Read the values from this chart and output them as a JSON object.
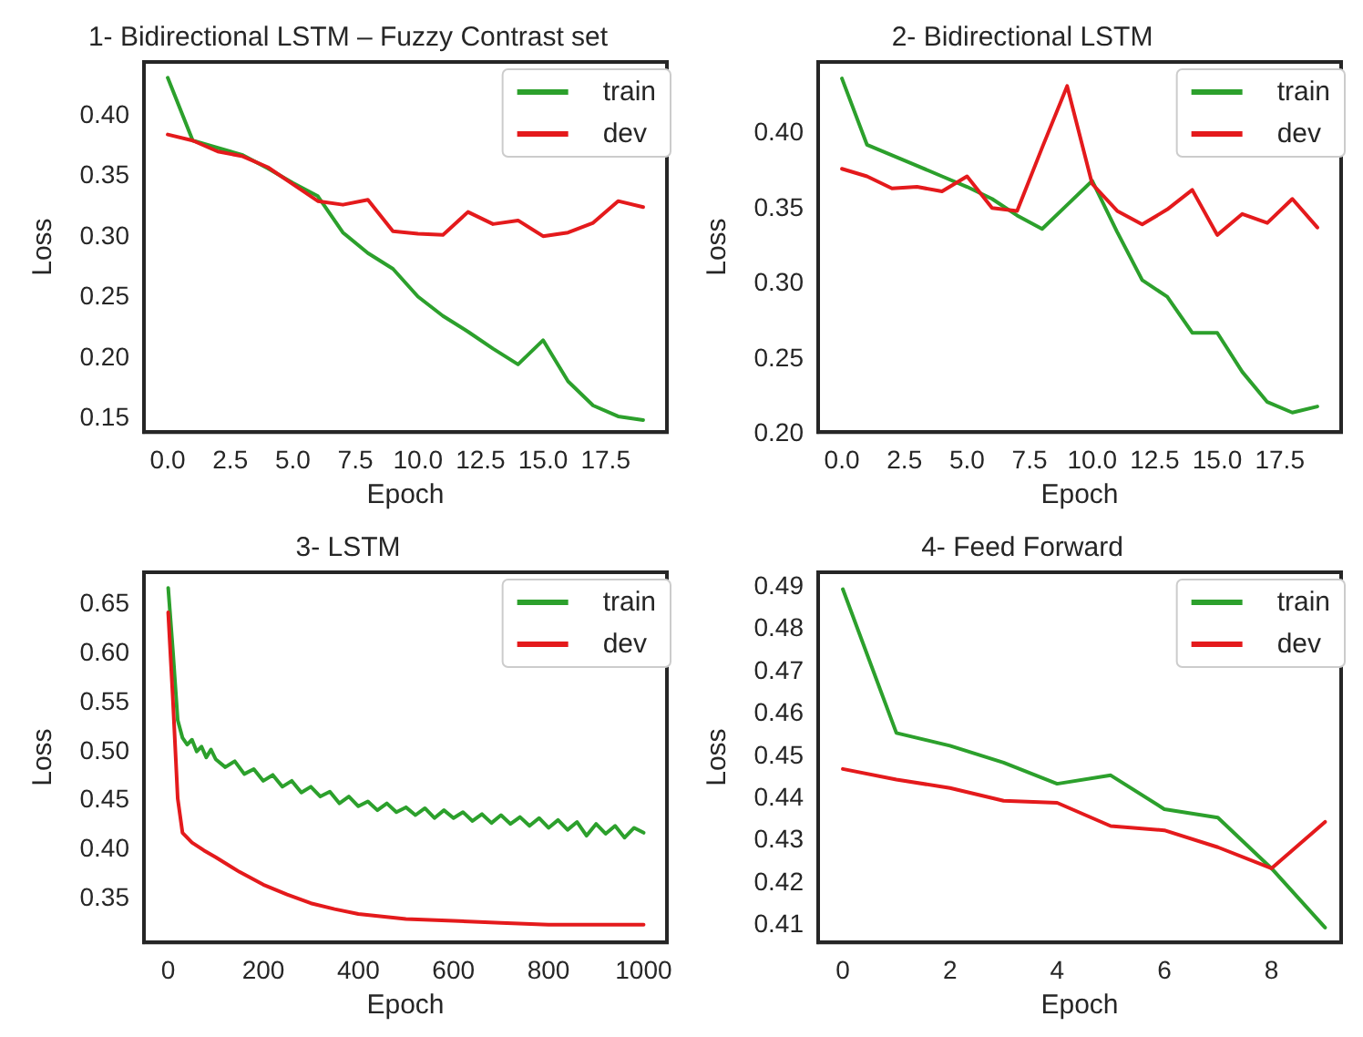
{
  "chart_data": [
    {
      "type": "line",
      "title": "1- Bidirectional LSTM – Fuzzy Contrast set",
      "xlabel": "Epoch",
      "ylabel": "Loss",
      "legend": "top right",
      "grid": false,
      "line_style": "solid",
      "x": [
        0,
        1,
        2,
        3,
        4,
        5,
        6,
        7,
        8,
        9,
        10,
        11,
        12,
        13,
        14,
        15,
        16,
        17,
        18,
        19
      ],
      "xlim": [
        -0.95,
        19.95
      ],
      "xticks": [
        {
          "value": 0,
          "label": "0.0"
        },
        {
          "value": 2.5,
          "label": "2.5"
        },
        {
          "value": 5,
          "label": "5.0"
        },
        {
          "value": 7.5,
          "label": "7.5"
        },
        {
          "value": 10,
          "label": "10.0"
        },
        {
          "value": 12.5,
          "label": "12.5"
        },
        {
          "value": 15,
          "label": "15.0"
        },
        {
          "value": 17.5,
          "label": "17.5"
        }
      ],
      "ylim": [
        0.137,
        0.443
      ],
      "yticks": [
        {
          "value": 0.15,
          "label": "0.15"
        },
        {
          "value": 0.2,
          "label": "0.20"
        },
        {
          "value": 0.25,
          "label": "0.25"
        },
        {
          "value": 0.3,
          "label": "0.30"
        },
        {
          "value": 0.35,
          "label": "0.35"
        },
        {
          "value": 0.4,
          "label": "0.40"
        }
      ],
      "series": [
        {
          "name": "train",
          "color": "#2ca02c",
          "values": [
            0.43,
            0.378,
            0.372,
            0.366,
            0.355,
            0.343,
            0.332,
            0.302,
            0.285,
            0.272,
            0.249,
            0.233,
            0.22,
            0.206,
            0.193,
            0.213,
            0.179,
            0.159,
            0.15,
            0.147
          ]
        },
        {
          "name": "dev",
          "color": "#e41a1c",
          "values": [
            0.383,
            0.378,
            0.369,
            0.365,
            0.356,
            0.342,
            0.328,
            0.325,
            0.329,
            0.303,
            0.301,
            0.3,
            0.319,
            0.309,
            0.312,
            0.299,
            0.302,
            0.31,
            0.328,
            0.323
          ]
        }
      ]
    },
    {
      "type": "line",
      "title": "2- Bidirectional LSTM",
      "xlabel": "Epoch",
      "ylabel": "Loss",
      "legend": "top right",
      "grid": false,
      "line_style": "solid",
      "x": [
        0,
        1,
        2,
        3,
        4,
        5,
        6,
        7,
        8,
        9,
        10,
        11,
        12,
        13,
        14,
        15,
        16,
        17,
        18,
        19
      ],
      "xlim": [
        -0.95,
        19.95
      ],
      "xticks": [
        {
          "value": 0,
          "label": "0.0"
        },
        {
          "value": 2.5,
          "label": "2.5"
        },
        {
          "value": 5,
          "label": "5.0"
        },
        {
          "value": 7.5,
          "label": "7.5"
        },
        {
          "value": 10,
          "label": "10.0"
        },
        {
          "value": 12.5,
          "label": "12.5"
        },
        {
          "value": 15,
          "label": "15.0"
        },
        {
          "value": 17.5,
          "label": "17.5"
        }
      ],
      "ylim": [
        0.2,
        0.446
      ],
      "yticks": [
        {
          "value": 0.2,
          "label": "0.20"
        },
        {
          "value": 0.25,
          "label": "0.25"
        },
        {
          "value": 0.3,
          "label": "0.30"
        },
        {
          "value": 0.35,
          "label": "0.35"
        },
        {
          "value": 0.4,
          "label": "0.40"
        }
      ],
      "series": [
        {
          "name": "train",
          "color": "#2ca02c",
          "values": [
            0.435,
            0.391,
            0.384,
            0.377,
            0.37,
            0.363,
            0.355,
            0.344,
            0.335,
            0.351,
            0.367,
            0.333,
            0.301,
            0.29,
            0.266,
            0.266,
            0.24,
            0.22,
            0.213,
            0.217
          ]
        },
        {
          "name": "dev",
          "color": "#e41a1c",
          "values": [
            0.375,
            0.37,
            0.362,
            0.363,
            0.36,
            0.37,
            0.349,
            0.347,
            0.389,
            0.43,
            0.365,
            0.347,
            0.338,
            0.348,
            0.361,
            0.331,
            0.345,
            0.339,
            0.355,
            0.336
          ]
        }
      ]
    },
    {
      "type": "line",
      "title": "3- LSTM",
      "xlabel": "Epoch",
      "ylabel": "Loss",
      "legend": "top right",
      "grid": false,
      "line_style": "solid",
      "xlim": [
        -51,
        1049
      ],
      "xticks": [
        0,
        200,
        400,
        600,
        800,
        1000
      ],
      "ylim": [
        0.303,
        0.681
      ],
      "yticks": [
        {
          "value": 0.35,
          "label": "0.35"
        },
        {
          "value": 0.4,
          "label": "0.40"
        },
        {
          "value": 0.45,
          "label": "0.45"
        },
        {
          "value": 0.5,
          "label": "0.50"
        },
        {
          "value": 0.55,
          "label": "0.55"
        },
        {
          "value": 0.6,
          "label": "0.60"
        },
        {
          "value": 0.65,
          "label": "0.65"
        }
      ],
      "series": [
        {
          "name": "train",
          "color": "#2ca02c",
          "x": [
            0,
            10,
            20,
            30,
            40,
            50,
            60,
            70,
            80,
            90,
            100,
            120,
            140,
            160,
            180,
            200,
            220,
            240,
            260,
            280,
            300,
            320,
            340,
            360,
            380,
            400,
            420,
            440,
            460,
            480,
            500,
            520,
            540,
            560,
            580,
            600,
            620,
            640,
            660,
            680,
            700,
            720,
            740,
            760,
            780,
            800,
            820,
            840,
            860,
            880,
            900,
            920,
            940,
            960,
            980,
            1000
          ],
          "values": [
            0.665,
            0.6,
            0.53,
            0.512,
            0.505,
            0.51,
            0.498,
            0.503,
            0.492,
            0.5,
            0.49,
            0.482,
            0.488,
            0.475,
            0.48,
            0.468,
            0.474,
            0.462,
            0.468,
            0.456,
            0.462,
            0.452,
            0.457,
            0.445,
            0.452,
            0.442,
            0.447,
            0.438,
            0.445,
            0.436,
            0.441,
            0.433,
            0.44,
            0.43,
            0.438,
            0.43,
            0.436,
            0.427,
            0.434,
            0.425,
            0.433,
            0.424,
            0.431,
            0.422,
            0.43,
            0.42,
            0.428,
            0.418,
            0.426,
            0.412,
            0.424,
            0.414,
            0.422,
            0.41,
            0.42,
            0.415
          ]
        },
        {
          "name": "dev",
          "color": "#e41a1c",
          "x": [
            0,
            10,
            20,
            30,
            50,
            75,
            100,
            150,
            200,
            250,
            300,
            350,
            400,
            500,
            600,
            700,
            800,
            900,
            1000
          ],
          "values": [
            0.64,
            0.55,
            0.45,
            0.415,
            0.405,
            0.397,
            0.39,
            0.375,
            0.362,
            0.352,
            0.343,
            0.337,
            0.332,
            0.327,
            0.325,
            0.323,
            0.321,
            0.321,
            0.321
          ]
        }
      ]
    },
    {
      "type": "line",
      "title": "4- Feed Forward",
      "xlabel": "Epoch",
      "ylabel": "Loss",
      "legend": "top right",
      "grid": false,
      "line_style": "solid",
      "x": [
        0,
        1,
        2,
        3,
        4,
        5,
        6,
        7,
        8,
        9
      ],
      "xlim": [
        -0.46,
        9.3
      ],
      "xticks": [
        0,
        2,
        4,
        6,
        8
      ],
      "ylim": [
        0.4055,
        0.493
      ],
      "yticks": [
        0.41,
        0.42,
        0.43,
        0.44,
        0.45,
        0.46,
        0.47,
        0.48,
        0.49
      ],
      "series": [
        {
          "name": "train",
          "color": "#2ca02c",
          "values": [
            0.489,
            0.455,
            0.452,
            0.448,
            0.443,
            0.445,
            0.437,
            0.435,
            0.423,
            0.409
          ]
        },
        {
          "name": "dev",
          "color": "#e41a1c",
          "values": [
            0.4465,
            0.444,
            0.442,
            0.439,
            0.4385,
            0.433,
            0.432,
            0.428,
            0.423,
            0.434
          ]
        }
      ]
    }
  ]
}
